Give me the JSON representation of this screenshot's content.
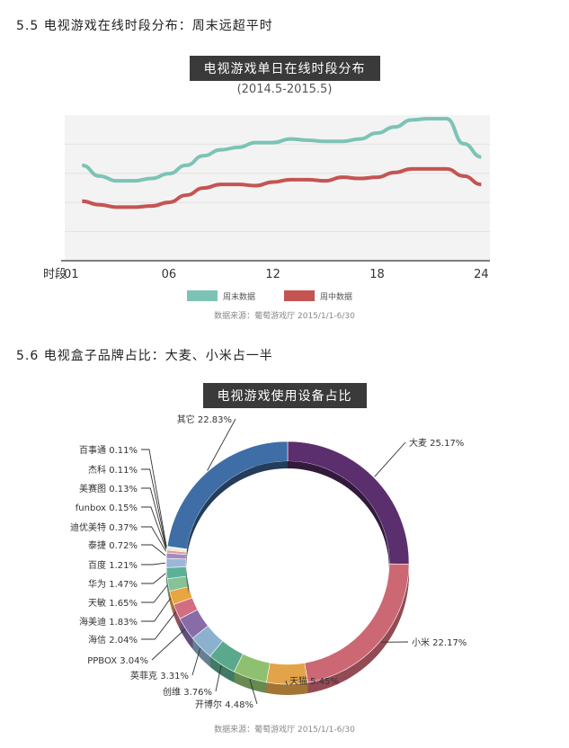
{
  "section1": {
    "title": "5.5 电视游戏在线时段分布：周末远超平时"
  },
  "section2": {
    "title": "5.6 电视盒子品牌占比：大麦、小米占一半"
  },
  "chart_data": [
    {
      "type": "line",
      "title": "电视游戏单日在线时段分布",
      "subtitle": "(2014.5-2015.5)",
      "xlabel": "时段",
      "x_ticks": [
        "01",
        "06",
        "12",
        "18",
        "24"
      ],
      "x": [
        1,
        2,
        3,
        4,
        5,
        6,
        7,
        8,
        9,
        10,
        11,
        12,
        13,
        14,
        15,
        16,
        17,
        18,
        19,
        20,
        21,
        22,
        23,
        24
      ],
      "ylim": [
        0,
        100
      ],
      "grid": true,
      "series": [
        {
          "name": "周末数据",
          "color": "#7cc3b6",
          "values": [
            61,
            52,
            48,
            48,
            50,
            54,
            61,
            69,
            74,
            76,
            80,
            80,
            83,
            82,
            81,
            81,
            83,
            88,
            93,
            99,
            100,
            100,
            79,
            68
          ]
        },
        {
          "name": "周中数据",
          "color": "#c45452",
          "values": [
            31,
            28,
            26,
            26,
            27,
            30,
            36,
            42,
            45,
            45,
            44,
            47,
            49,
            49,
            48,
            51,
            50,
            51,
            55,
            58,
            58,
            58,
            52,
            45
          ]
        }
      ],
      "legend_position": "bottom",
      "source": "数据来源：葡萄游戏厅 2015/1/1-6/30"
    },
    {
      "type": "pie",
      "title": "电视游戏使用设备占比",
      "slices": [
        {
          "label": "大麦",
          "value": 25.17,
          "display": "25.17%",
          "color": "#5b2f6e"
        },
        {
          "label": "小米",
          "value": 22.17,
          "display": "22.17%",
          "color": "#cc6874"
        },
        {
          "label": "天猫",
          "value": 5.45,
          "display": "5.45%",
          "color": "#e3a349"
        },
        {
          "label": "开博尔",
          "value": 4.48,
          "display": "4.48%",
          "color": "#8fc070"
        },
        {
          "label": "创维",
          "value": 3.76,
          "display": "3.76%",
          "color": "#5aa98c"
        },
        {
          "label": "英菲克",
          "value": 3.31,
          "display": "3.31%",
          "color": "#8cb1cf"
        },
        {
          "label": "PPBOX",
          "value": 3.04,
          "display": "3.04%",
          "color": "#876ca8"
        },
        {
          "label": "海信",
          "value": 2.04,
          "display": "2.04%",
          "color": "#d26e82"
        },
        {
          "label": "海美迪",
          "value": 1.83,
          "display": "1.83%",
          "color": "#e9a53f"
        },
        {
          "label": "天敏",
          "value": 1.65,
          "display": "1.65%",
          "color": "#86c296"
        },
        {
          "label": "华为",
          "value": 1.47,
          "display": "1.47%",
          "color": "#5bb197"
        },
        {
          "label": "百度",
          "value": 1.21,
          "display": "1.21%",
          "color": "#9ab7d8"
        },
        {
          "label": "泰捷",
          "value": 0.72,
          "display": "0.72%",
          "color": "#a18bc2"
        },
        {
          "label": "迪优美特",
          "value": 0.37,
          "display": "0.37%",
          "color": "#e29b9b"
        },
        {
          "label": "funbox",
          "value": 0.15,
          "display": "0.15%",
          "color": "#f0c070"
        },
        {
          "label": "美赛图",
          "value": 0.13,
          "display": "0.13%",
          "color": "#a6d3a0"
        },
        {
          "label": "杰科",
          "value": 0.11,
          "display": "0.11%",
          "color": "#7fc6c0"
        },
        {
          "label": "百事通",
          "value": 0.11,
          "display": "0.11%",
          "color": "#b0c4e0"
        },
        {
          "label": "其它",
          "value": 22.83,
          "display": "22.83%",
          "color": "#3f6ea6"
        }
      ],
      "source": "数据来源：葡萄游戏厅 2015/1/1-6/30"
    }
  ]
}
